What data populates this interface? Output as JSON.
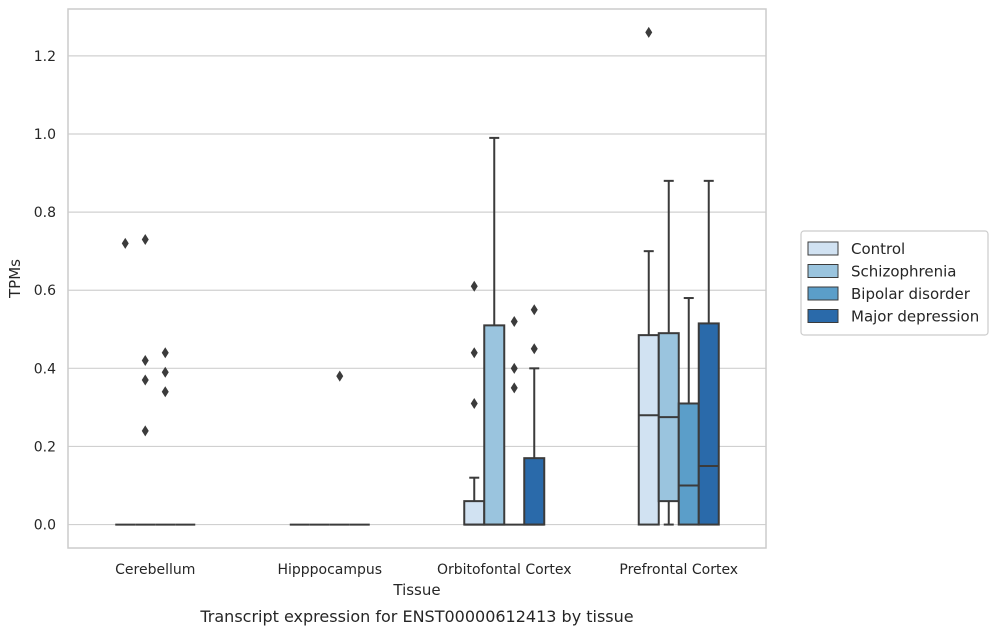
{
  "chart_data": {
    "type": "box",
    "caption": "Transcript expression for ENST00000612413 by tissue",
    "xlabel": "Tissue",
    "ylabel": "TPMs",
    "ylim": [
      -0.06,
      1.32
    ],
    "yticks": [
      0.0,
      0.2,
      0.4,
      0.6,
      0.8,
      1.0,
      1.2
    ],
    "ytick_labels": [
      "0.0",
      "0.2",
      "0.4",
      "0.6",
      "0.8",
      "1.0",
      "1.2"
    ],
    "grid": true,
    "legend_position": "outside right",
    "categories": [
      "Cerebellum",
      "Hipppocampus",
      "Orbitofontal Cortex",
      "Prefrontal Cortex"
    ],
    "series": [
      {
        "name": "Control",
        "color": "#d1e2f2",
        "boxes": [
          {
            "category": "Cerebellum",
            "whisker_low": 0,
            "q1": 0,
            "median": 0,
            "q3": 0,
            "whisker_high": 0,
            "outliers": [
              0.72
            ]
          },
          {
            "category": "Hipppocampus",
            "whisker_low": 0,
            "q1": 0,
            "median": 0,
            "q3": 0,
            "whisker_high": 0,
            "outliers": []
          },
          {
            "category": "Orbitofontal Cortex",
            "whisker_low": 0,
            "q1": 0,
            "median": 0,
            "q3": 0.06,
            "whisker_high": 0.12,
            "outliers": [
              0.31,
              0.44,
              0.61
            ]
          },
          {
            "category": "Prefrontal Cortex",
            "whisker_low": 0,
            "q1": 0,
            "median": 0.28,
            "q3": 0.485,
            "whisker_high": 0.7,
            "outliers": [
              1.26
            ]
          }
        ]
      },
      {
        "name": "Schizophrenia",
        "color": "#9ac4de",
        "boxes": [
          {
            "category": "Cerebellum",
            "whisker_low": 0,
            "q1": 0,
            "median": 0,
            "q3": 0,
            "whisker_high": 0,
            "outliers": [
              0.24,
              0.37,
              0.42,
              0.73
            ]
          },
          {
            "category": "Hipppocampus",
            "whisker_low": 0,
            "q1": 0,
            "median": 0,
            "q3": 0,
            "whisker_high": 0,
            "outliers": []
          },
          {
            "category": "Orbitofontal Cortex",
            "whisker_low": 0,
            "q1": 0,
            "median": 0,
            "q3": 0.51,
            "whisker_high": 0.99,
            "outliers": []
          },
          {
            "category": "Prefrontal Cortex",
            "whisker_low": 0,
            "q1": 0.06,
            "median": 0.275,
            "q3": 0.49,
            "whisker_high": 0.88,
            "outliers": []
          }
        ]
      },
      {
        "name": "Bipolar disorder",
        "color": "#5b9ec9",
        "boxes": [
          {
            "category": "Cerebellum",
            "whisker_low": 0,
            "q1": 0,
            "median": 0,
            "q3": 0,
            "whisker_high": 0,
            "outliers": [
              0.34,
              0.39,
              0.44
            ]
          },
          {
            "category": "Hipppocampus",
            "whisker_low": 0,
            "q1": 0,
            "median": 0,
            "q3": 0,
            "whisker_high": 0,
            "outliers": [
              0.38
            ]
          },
          {
            "category": "Orbitofontal Cortex",
            "whisker_low": 0,
            "q1": 0,
            "median": 0,
            "q3": 0,
            "whisker_high": 0,
            "outliers": [
              0.35,
              0.4,
              0.52
            ]
          },
          {
            "category": "Prefrontal Cortex",
            "whisker_low": 0,
            "q1": 0,
            "median": 0.1,
            "q3": 0.31,
            "whisker_high": 0.58,
            "outliers": []
          }
        ]
      },
      {
        "name": "Major depression",
        "color": "#2a6aaa",
        "boxes": [
          {
            "category": "Cerebellum",
            "whisker_low": 0,
            "q1": 0,
            "median": 0,
            "q3": 0,
            "whisker_high": 0,
            "outliers": []
          },
          {
            "category": "Hipppocampus",
            "whisker_low": 0,
            "q1": 0,
            "median": 0,
            "q3": 0,
            "whisker_high": 0,
            "outliers": []
          },
          {
            "category": "Orbitofontal Cortex",
            "whisker_low": 0,
            "q1": 0,
            "median": 0,
            "q3": 0.17,
            "whisker_high": 0.4,
            "outliers": [
              0.45,
              0.55
            ]
          },
          {
            "category": "Prefrontal Cortex",
            "whisker_low": 0,
            "q1": 0,
            "median": 0.15,
            "q3": 0.515,
            "whisker_high": 0.88,
            "outliers": []
          }
        ]
      }
    ]
  }
}
